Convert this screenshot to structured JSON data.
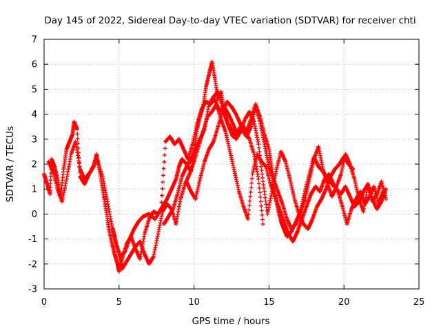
{
  "chart_data": {
    "type": "scatter",
    "title": "Day 145 of 2022, Sidereal Day-to-day VTEC variation (SDTVAR) for receiver chti",
    "xlabel": "GPS time / hours",
    "ylabel": "SDTVAR / TECUs",
    "xlim": [
      0,
      25
    ],
    "ylim": [
      -3,
      7
    ],
    "xticks": [
      0,
      5,
      10,
      15,
      20,
      25
    ],
    "yticks": [
      -3,
      -2,
      -1,
      0,
      1,
      2,
      3,
      4,
      5,
      6,
      7
    ],
    "grid": true,
    "marker": "+",
    "series": [
      {
        "name": "SDTVAR",
        "color": "#ff0000",
        "x": [
          0.0,
          0.2,
          0.4,
          0.5,
          0.7,
          0.9,
          1.1,
          1.3,
          1.5,
          1.7,
          1.9,
          2.0,
          2.2,
          2.4,
          2.7,
          3.0,
          3.3,
          3.5,
          3.7,
          3.9,
          4.1,
          4.3,
          4.5,
          4.7,
          4.9,
          5.0,
          5.2,
          5.5,
          5.8,
          6.1,
          6.4,
          6.7,
          7.0,
          7.3,
          7.6,
          7.9,
          8.2,
          8.5,
          8.8,
          9.0,
          9.2,
          9.5,
          9.8,
          10.0,
          10.2,
          10.4,
          10.6,
          10.8,
          11.0,
          11.2,
          11.4,
          11.6,
          11.8,
          12.0,
          12.2,
          12.4,
          12.6,
          12.9,
          13.2,
          13.5,
          13.8,
          14.1,
          14.4,
          14.7,
          15.0,
          15.2,
          15.4,
          15.6,
          15.8,
          16.0,
          16.2,
          16.5,
          16.8,
          17.1,
          17.4,
          17.7,
          18.0,
          18.3,
          18.6,
          18.9,
          19.2,
          19.5,
          19.8,
          20.1,
          20.4,
          20.7,
          21.0,
          21.3,
          21.6,
          21.9,
          22.2,
          22.5,
          22.8
        ],
        "y": [
          1.6,
          1.2,
          0.8,
          2.2,
          1.9,
          1.4,
          0.7,
          1.8,
          2.6,
          2.9,
          3.2,
          3.7,
          3.4,
          1.5,
          1.2,
          1.6,
          1.9,
          2.4,
          1.8,
          1.0,
          0.3,
          -0.5,
          -1.1,
          -1.6,
          -2.0,
          -2.3,
          -1.8,
          -1.2,
          -0.9,
          -1.4,
          -1.8,
          -0.8,
          -0.2,
          0.1,
          0.0,
          0.3,
          0.6,
          1.0,
          1.4,
          1.9,
          2.2,
          2.0,
          1.7,
          2.5,
          3.4,
          3.9,
          4.3,
          5.1,
          5.6,
          6.1,
          5.4,
          4.6,
          4.9,
          4.1,
          3.7,
          3.4,
          3.1,
          3.3,
          3.6,
          3.3,
          3.8,
          4.4,
          3.9,
          3.2,
          2.6,
          1.8,
          0.8,
          0.2,
          -0.3,
          -0.6,
          -0.9,
          -0.7,
          -0.3,
          0.1,
          0.6,
          1.4,
          2.2,
          2.7,
          1.8,
          1.2,
          0.7,
          1.1,
          1.6,
          2.4,
          2.0,
          1.4,
          0.6,
          0.1,
          1.2,
          0.6,
          0.2,
          0.5,
          1.0
        ]
      },
      {
        "name": "SDTVAR",
        "color": "#ff0000",
        "x": [
          0.3,
          0.6,
          0.9,
          1.2,
          1.5,
          1.8,
          2.1,
          2.4,
          2.7,
          3.1,
          3.5,
          3.9,
          4.2,
          4.5,
          4.8,
          5.1,
          5.4,
          5.7,
          6.0,
          6.3,
          6.6,
          7.0,
          7.4,
          7.8,
          8.1,
          8.4,
          8.7,
          9.0,
          9.3,
          9.6,
          9.9,
          10.2,
          10.5,
          10.8,
          11.1,
          11.4,
          11.7,
          12.0,
          12.3,
          12.6,
          12.9,
          13.2,
          13.5,
          13.8,
          14.1,
          14.4,
          14.7,
          15.0,
          15.3,
          15.6,
          15.9,
          16.2,
          16.5,
          16.8,
          17.1,
          17.4,
          17.7,
          18.0,
          18.3,
          18.6,
          18.9,
          19.2,
          19.5,
          19.8,
          20.1,
          20.4,
          20.7,
          21.0,
          21.3,
          21.6,
          21.9,
          22.2,
          22.5,
          22.8
        ],
        "y": [
          2.1,
          1.7,
          1.0,
          0.5,
          1.4,
          2.4,
          2.9,
          1.8,
          1.4,
          1.7,
          2.2,
          1.5,
          0.6,
          -0.4,
          -1.2,
          -1.7,
          -1.5,
          -1.0,
          -0.6,
          -0.3,
          -0.1,
          0.0,
          -0.2,
          0.2,
          2.9,
          3.1,
          2.8,
          3.0,
          2.6,
          2.2,
          2.8,
          3.6,
          4.2,
          4.5,
          4.4,
          4.6,
          4.1,
          4.3,
          4.0,
          3.6,
          3.2,
          3.4,
          3.1,
          3.5,
          4.3,
          3.7,
          2.8,
          1.9,
          1.4,
          0.9,
          0.4,
          -0.2,
          -0.6,
          -0.4,
          0.1,
          0.9,
          1.6,
          2.3,
          1.9,
          1.7,
          1.4,
          1.2,
          1.0,
          0.8,
          1.1,
          0.7,
          0.3,
          0.5,
          0.9,
          1.2,
          0.5,
          0.8,
          1.3,
          0.6
        ]
      },
      {
        "name": "SDTVAR",
        "color": "#ff0000",
        "x": [
          4.6,
          4.9,
          5.2,
          5.5,
          5.8,
          6.1,
          6.4,
          6.7,
          7.0,
          7.3,
          7.6,
          7.9,
          8.2,
          8.5,
          8.8,
          9.1,
          9.4,
          9.7,
          10.0,
          10.3,
          10.6,
          10.9,
          11.2,
          11.5,
          11.8,
          12.1,
          12.4,
          12.7,
          13.0,
          13.3,
          13.6,
          13.9,
          14.2,
          14.5,
          14.8,
          15.1,
          15.4,
          15.7,
          16.0,
          16.3,
          16.6,
          16.9,
          17.2,
          17.5,
          17.8,
          18.1,
          18.4,
          18.7,
          19.0,
          19.3,
          19.6,
          19.9,
          20.2,
          20.5,
          20.8,
          21.1,
          21.4,
          21.7,
          22.0,
          22.3,
          22.6
        ],
        "y": [
          -0.6,
          -1.4,
          -2.2,
          -1.9,
          -1.6,
          -1.3,
          -1.1,
          -1.6,
          -2.0,
          -1.7,
          -0.8,
          0.1,
          0.4,
          0.2,
          -0.4,
          0.6,
          1.2,
          1.6,
          2.1,
          2.7,
          3.3,
          3.9,
          4.1,
          4.4,
          3.8,
          3.3,
          2.5,
          1.7,
          0.9,
          0.3,
          -0.2,
          1.6,
          2.4,
          2.1,
          1.9,
          1.2,
          0.7,
          0.2,
          -0.3,
          -0.8,
          -1.1,
          -0.7,
          -0.2,
          0.3,
          0.8,
          1.1,
          0.9,
          1.4,
          1.6,
          1.2,
          0.9,
          0.3,
          -0.4,
          0.2,
          0.6,
          0.9,
          0.4,
          0.7,
          1.1,
          0.4,
          0.9
        ]
      },
      {
        "name": "SDTVAR",
        "color": "#ff0000",
        "x": [
          8.0,
          8.3,
          8.6,
          8.9,
          9.2,
          9.5,
          9.8,
          10.1,
          10.4,
          10.7,
          11.0,
          11.3,
          11.6,
          11.9,
          12.2,
          12.5,
          12.8,
          13.1,
          13.4,
          13.7,
          14.0,
          14.3,
          14.6,
          14.9,
          15.2,
          15.5,
          15.8,
          16.1,
          16.4,
          16.7,
          17.0,
          17.3,
          17.6,
          17.9,
          18.2,
          18.5,
          18.8,
          19.1,
          19.4,
          19.7,
          20.0,
          20.3,
          20.6
        ],
        "y": [
          -0.4,
          -0.1,
          0.2,
          0.8,
          1.5,
          1.9,
          2.2,
          2.6,
          3.0,
          3.4,
          4.4,
          4.7,
          4.9,
          4.3,
          3.7,
          3.4,
          3.0,
          3.3,
          3.8,
          4.1,
          3.7,
          2.8,
          1.3,
          0.0,
          0.9,
          1.8,
          2.5,
          2.1,
          1.4,
          0.6,
          0.0,
          -0.4,
          -0.6,
          -0.2,
          0.3,
          0.6,
          1.0,
          1.5,
          1.8,
          2.0,
          2.3,
          2.0,
          1.8
        ]
      },
      {
        "name": "SDTVAR",
        "color": "#ff0000",
        "x": [
          9.5,
          9.8,
          10.1,
          10.4,
          10.7,
          11.0,
          11.3,
          11.6,
          11.9,
          12.2,
          12.5,
          12.8,
          13.1,
          13.4,
          13.7,
          14.0,
          14.3,
          14.6
        ],
        "y": [
          1.3,
          0.9,
          0.6,
          1.4,
          2.1,
          2.6,
          2.9,
          3.5,
          4.1,
          4.5,
          4.3,
          4.0,
          3.6,
          3.3,
          3.0,
          2.4,
          1.4,
          -0.4
        ]
      }
    ]
  }
}
